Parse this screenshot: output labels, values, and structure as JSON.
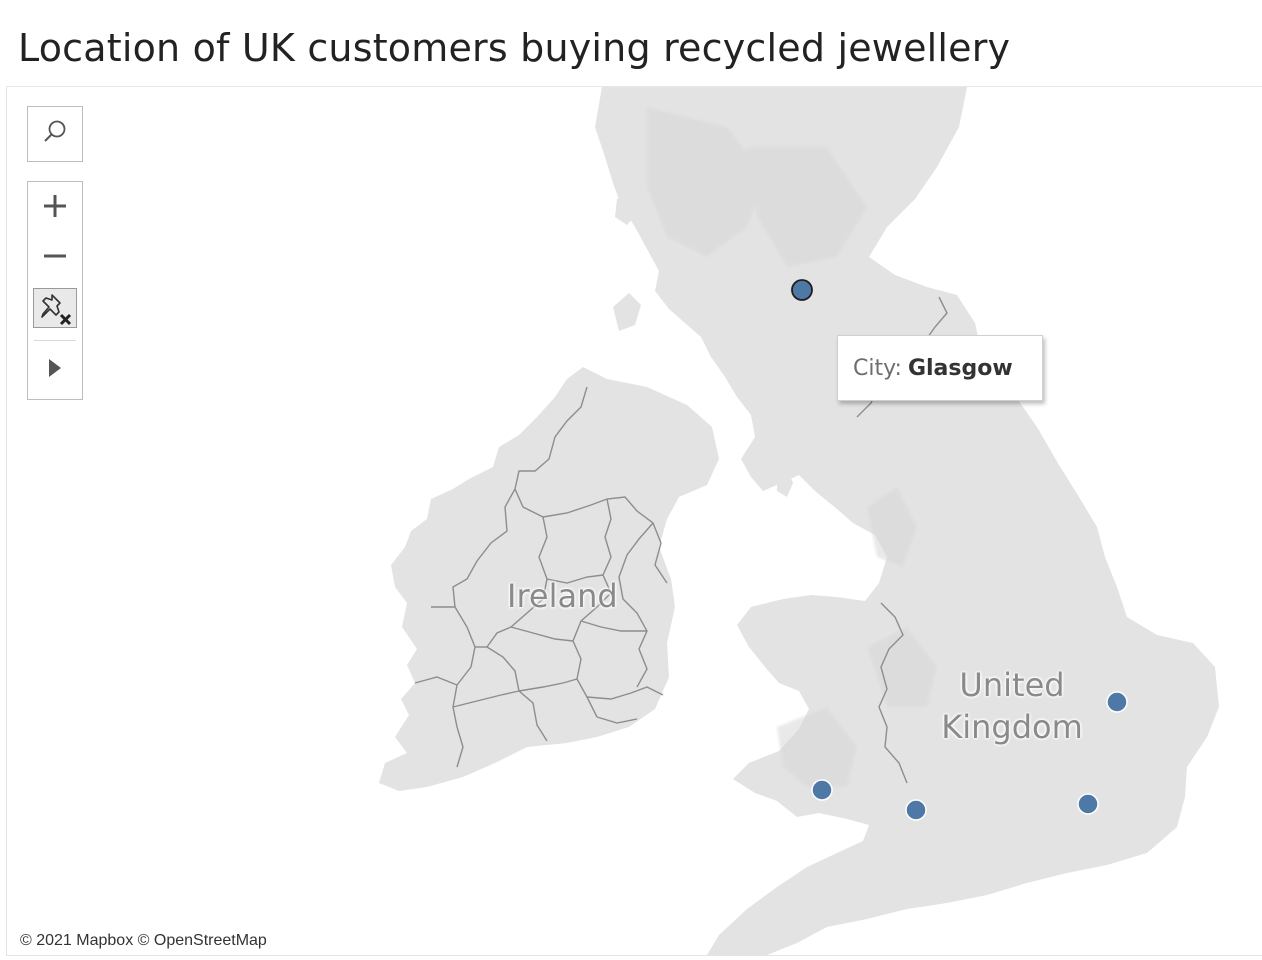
{
  "title": "Location of UK customers buying recycled jewellery",
  "map": {
    "labels": {
      "ireland": "Ireland",
      "uk_line1": "United",
      "uk_line2": "Kingdom"
    },
    "attribution": "© 2021 Mapbox © OpenStreetMap",
    "colors": {
      "land": "#e3e3e3",
      "land_shade": "#d8d8d8",
      "water": "#ffffff",
      "border": "#8d8d8d",
      "marker": "#4e79a7",
      "marker_selected_outline": "#1f1f1f",
      "marker_outline": "#ffffff"
    }
  },
  "toolbar": {
    "search_icon": "search-icon",
    "zoom_in_icon": "plus-icon",
    "zoom_out_icon": "minus-icon",
    "pin_icon": "unpin-map-icon",
    "expand_icon": "play-triangle-icon"
  },
  "tooltip": {
    "label": "City:",
    "value": "Glasgow"
  },
  "markers": [
    {
      "city": "Glasgow",
      "selected": true
    },
    {
      "city": "",
      "selected": false
    },
    {
      "city": "",
      "selected": false
    },
    {
      "city": "",
      "selected": false
    },
    {
      "city": "",
      "selected": false
    }
  ]
}
